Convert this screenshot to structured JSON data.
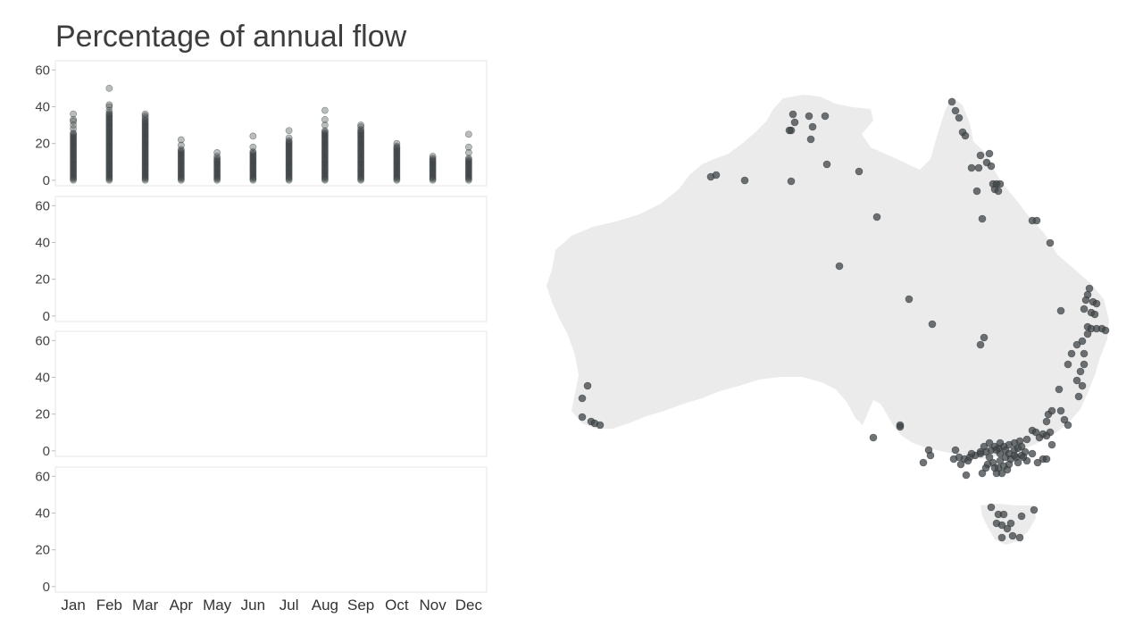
{
  "title": "Percentage of annual flow",
  "colors": {
    "point": "#3a4346",
    "panel_border": "#e6e6e6",
    "land": "#ebebeb",
    "station": "#3f4447"
  },
  "chart_data": {
    "type": "scatter",
    "title": "Percentage of annual flow",
    "xlabel": "",
    "ylabel": "",
    "ylim": [
      -3,
      65
    ],
    "yticks": [
      0,
      20,
      40,
      60
    ],
    "grid": false,
    "categories": [
      "Jan",
      "Feb",
      "Mar",
      "Apr",
      "May",
      "Jun",
      "Jul",
      "Aug",
      "Sep",
      "Oct",
      "Nov",
      "Dec"
    ],
    "panels": [
      {
        "series": [
          {
            "category": "Jan",
            "min": 0,
            "dense_max": 26,
            "outliers": [
              28,
              30,
              32,
              33,
              36
            ]
          },
          {
            "category": "Feb",
            "min": 0,
            "dense_max": 37,
            "outliers": [
              38,
              40,
              41,
              50
            ]
          },
          {
            "category": "Mar",
            "min": 0,
            "dense_max": 33,
            "outliers": [
              34,
              35,
              36
            ]
          },
          {
            "category": "Apr",
            "min": 0,
            "dense_max": 17,
            "outliers": [
              19,
              22
            ]
          },
          {
            "category": "May",
            "min": 0,
            "dense_max": 12,
            "outliers": [
              13,
              15
            ]
          },
          {
            "category": "Jun",
            "min": 0,
            "dense_max": 16,
            "outliers": [
              18,
              24
            ]
          },
          {
            "category": "Jul",
            "min": 0,
            "dense_max": 22,
            "outliers": [
              23,
              27
            ]
          },
          {
            "category": "Aug",
            "min": 0,
            "dense_max": 27,
            "outliers": [
              30,
              33,
              38
            ]
          },
          {
            "category": "Sep",
            "min": 0,
            "dense_max": 28,
            "outliers": [
              29,
              30
            ]
          },
          {
            "category": "Oct",
            "min": 0,
            "dense_max": 19,
            "outliers": [
              20
            ]
          },
          {
            "category": "Nov",
            "min": 0,
            "dense_max": 12,
            "outliers": [
              13
            ]
          },
          {
            "category": "Dec",
            "min": 0,
            "dense_max": 12,
            "outliers": [
              15,
              18,
              25
            ]
          }
        ]
      },
      {
        "series": []
      },
      {
        "series": []
      },
      {
        "series": []
      }
    ]
  },
  "map": {
    "region": "Australia",
    "station_count": 250
  }
}
